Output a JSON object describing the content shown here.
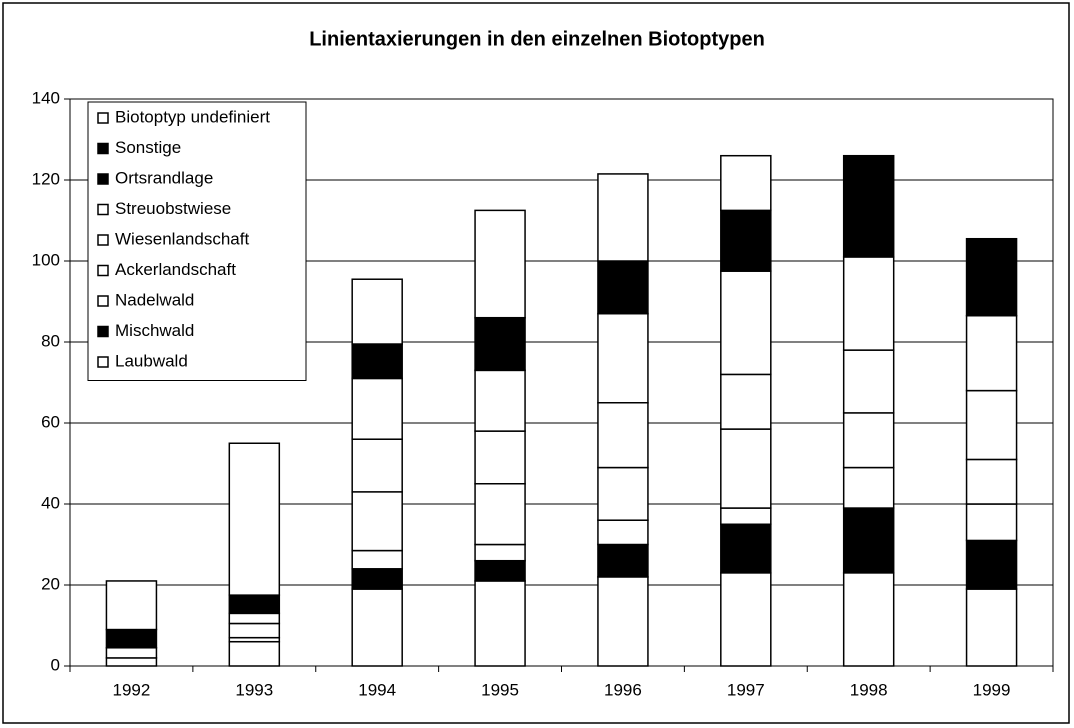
{
  "chart_data": {
    "type": "stacked_bar",
    "title": "Linientaxierungen in den einzelnen Biotoptypen",
    "categories": [
      "1992",
      "1993",
      "1994",
      "1995",
      "1996",
      "1997",
      "1998",
      "1999"
    ],
    "series": [
      {
        "name": "Laubwald",
        "color": "#ffffff",
        "values": [
          2,
          6,
          19,
          21,
          22,
          23,
          23,
          19
        ]
      },
      {
        "name": "Mischwald",
        "color": "#000000",
        "values": [
          0,
          0,
          5,
          5,
          8,
          12,
          16,
          12
        ]
      },
      {
        "name": "Nadelwald",
        "color": "#ffffff",
        "values": [
          0,
          1,
          4.5,
          4,
          6,
          4,
          10,
          9
        ]
      },
      {
        "name": "Ackerlandschaft",
        "color": "#ffffff",
        "values": [
          2.5,
          3.5,
          14.5,
          15,
          13,
          19.5,
          13.5,
          11
        ]
      },
      {
        "name": "Wiesenlandschaft",
        "color": "#ffffff",
        "values": [
          0,
          2.5,
          13,
          13,
          16,
          13.5,
          15.5,
          17
        ]
      },
      {
        "name": "Streuobstwiese",
        "color": "#ffffff",
        "values": [
          0,
          0,
          15,
          15,
          22,
          25.5,
          23,
          18.5
        ]
      },
      {
        "name": "Ortsrandlage",
        "color": "#000000",
        "values": [
          4.5,
          4.5,
          8.5,
          13,
          13,
          15,
          25,
          19
        ]
      },
      {
        "name": "Sonstige",
        "color": "#000000",
        "values": [
          0,
          0,
          0,
          0,
          0,
          0,
          0,
          0
        ]
      },
      {
        "name": "Biotoptyp undefiniert",
        "color": "#ffffff",
        "values": [
          12,
          37.5,
          16,
          26.5,
          21.5,
          13.5,
          0,
          0
        ]
      }
    ],
    "ylim": [
      0,
      140
    ],
    "yticks": [
      0,
      20,
      40,
      60,
      80,
      100,
      120,
      140
    ],
    "grid": true,
    "legend": "upper left"
  }
}
